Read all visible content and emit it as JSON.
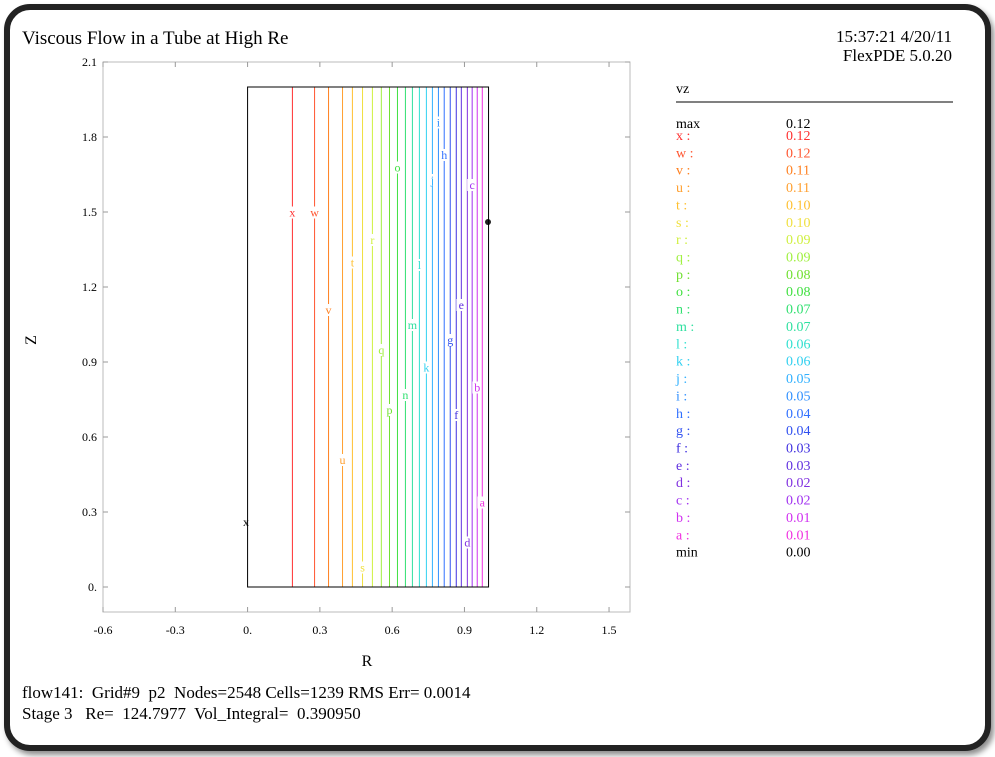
{
  "chart_data": {
    "type": "contour",
    "title": "Viscous Flow in a Tube at High Re",
    "timestamp": "15:37:21 4/20/11",
    "software": "FlexPDE 5.0.20",
    "x_label": "R",
    "y_label": "Z",
    "xlim": [
      -0.6,
      1.587
    ],
    "ylim": [
      -0.1,
      2.1
    ],
    "xticks": [
      -0.6,
      -0.3,
      {
        "value": 0,
        "label": "0."
      },
      0.3,
      0.6,
      0.9,
      1.2,
      1.5
    ],
    "yticks": [
      {
        "value": 0,
        "label": "0."
      },
      0.3,
      0.6,
      0.9,
      1.2,
      1.5,
      1.8,
      2.1
    ],
    "domain_rlim": [
      0,
      1
    ],
    "domain_zlim": [
      0,
      2
    ],
    "legend_title": "vz",
    "max_label": "max",
    "max_value": 0.12,
    "min_label": "min",
    "min_value": 0,
    "min_value_label": "0.00",
    "contours": {
      "letters": [
        "x",
        "w",
        "v",
        "u",
        "t",
        "s",
        "r",
        "q",
        "p",
        "o",
        "n",
        "m",
        "l",
        "k",
        "j",
        "i",
        "h",
        "g",
        "f",
        "e",
        "d",
        "c",
        "b",
        "a"
      ],
      "keys": [
        "x :",
        "w :",
        "v :",
        "u :",
        "t :",
        "s :",
        "r :",
        "q :",
        "p :",
        "o :",
        "n :",
        "m :",
        "l :",
        "k :",
        "j :",
        "i :",
        "h :",
        "g :",
        "f :",
        "e :",
        "d :",
        "c :",
        "b :",
        "a :"
      ],
      "values": [
        0.12,
        0.12,
        0.11,
        0.11,
        0.1,
        0.1,
        0.09,
        0.09,
        0.08,
        0.08,
        0.07,
        0.07,
        0.06,
        0.06,
        0.05,
        0.05,
        0.04,
        0.04,
        0.03,
        0.03,
        0.02,
        0.02,
        0.01,
        0.01
      ],
      "value_labels": [
        "0.12",
        "0.12",
        "0.11",
        "0.11",
        "0.10",
        "0.10",
        "0.09",
        "0.09",
        "0.08",
        "0.08",
        "0.07",
        "0.07",
        "0.06",
        "0.06",
        "0.05",
        "0.05",
        "0.04",
        "0.04",
        "0.03",
        "0.03",
        "0.02",
        "0.02",
        "0.01",
        "0.01"
      ],
      "r": [
        0.186,
        0.278,
        0.336,
        0.394,
        0.435,
        0.477,
        0.518,
        0.555,
        0.589,
        0.622,
        0.655,
        0.684,
        0.713,
        0.742,
        0.767,
        0.792,
        0.816,
        0.841,
        0.866,
        0.887,
        0.912,
        0.932,
        0.953,
        0.974
      ],
      "colors": [
        "#ff3030",
        "#ff5530",
        "#ff8020",
        "#ffa030",
        "#ffc030",
        "#f0e040",
        "#d0f040",
        "#a0f040",
        "#70e030",
        "#40e040",
        "#30e070",
        "#30e0a0",
        "#30e0d0",
        "#30d0f0",
        "#30b0ff",
        "#3090ff",
        "#3070ff",
        "#3050f0",
        "#4030e0",
        "#6030e0",
        "#8030e0",
        "#a030f0",
        "#d030f0",
        "#f030e0"
      ]
    },
    "footer_line1": "flow141:  Grid#9  p2  Nodes=2548 Cells=1239 RMS Err= 0.0014",
    "footer_line2": "Stage 3   Re=  124.7977  Vol_Integral=  0.390950"
  }
}
